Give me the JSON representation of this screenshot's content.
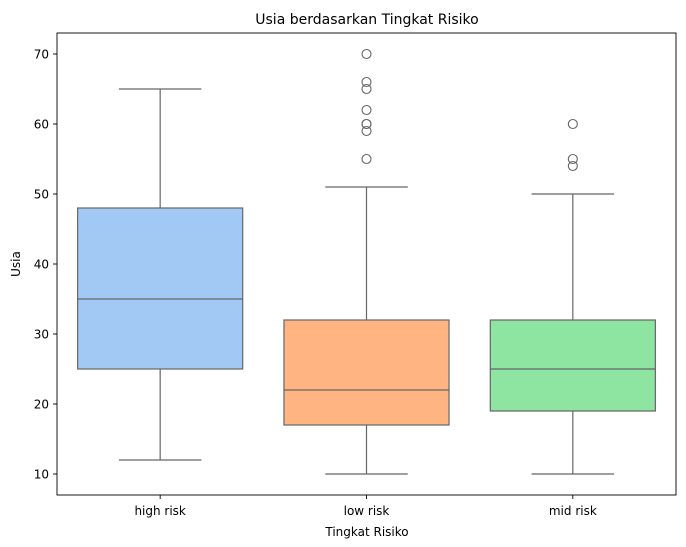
{
  "chart_data": {
    "type": "box",
    "title": "Usia berdasarkan Tingkat Risiko",
    "xlabel": "Tingkat Risiko",
    "ylabel": "Usia",
    "ylim": [
      7.0,
      73.0
    ],
    "yticks": [
      10,
      20,
      30,
      40,
      50,
      60,
      70
    ],
    "grid": false,
    "categories": [
      "high risk",
      "low risk",
      "mid risk"
    ],
    "colors": [
      "#a1c9f4",
      "#ffb482",
      "#8de5a1"
    ],
    "boxes": [
      {
        "category": "high risk",
        "whisker_low": 12,
        "q1": 25,
        "median": 35,
        "q3": 48,
        "whisker_high": 65,
        "outliers": []
      },
      {
        "category": "low risk",
        "whisker_low": 10,
        "q1": 17,
        "median": 22,
        "q3": 32,
        "whisker_high": 51,
        "outliers": [
          55,
          59,
          60,
          60,
          62,
          65,
          66,
          70
        ]
      },
      {
        "category": "mid risk",
        "whisker_low": 10,
        "q1": 19,
        "median": 25,
        "q3": 32,
        "whisker_high": 50,
        "outliers": [
          54,
          55,
          60
        ]
      }
    ]
  }
}
